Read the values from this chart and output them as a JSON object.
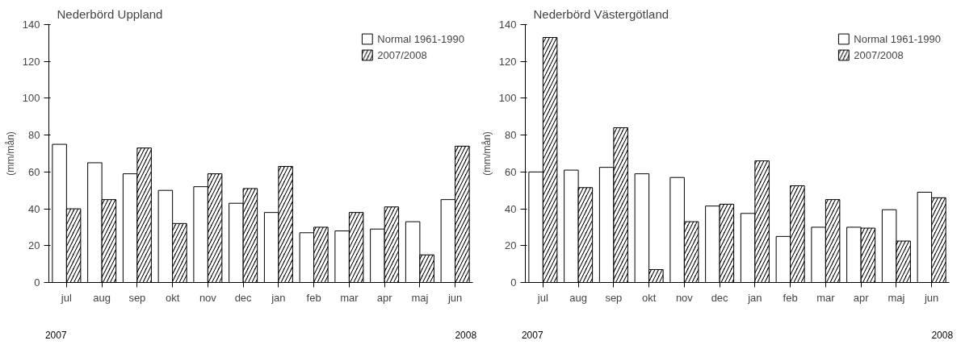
{
  "chart_data": [
    {
      "type": "bar",
      "title": "Nederbörd Uppland",
      "ylabel": "(mm/mån)",
      "categories": [
        "jul",
        "aug",
        "sep",
        "okt",
        "nov",
        "dec",
        "jan",
        "feb",
        "mar",
        "apr",
        "maj",
        "jun"
      ],
      "series": [
        {
          "name": "Normal 1961-1990",
          "color": "#ffffff",
          "values": [
            75,
            65,
            59,
            50,
            52,
            43,
            38,
            27,
            28,
            29,
            33,
            45
          ]
        },
        {
          "name": "2007/2008",
          "color": "#000000",
          "values": [
            40,
            45,
            73,
            32,
            59,
            51,
            63,
            30,
            38,
            41,
            15,
            74
          ]
        }
      ],
      "ylim": [
        0,
        140
      ],
      "yticks": [
        0,
        20,
        40,
        60,
        80,
        100,
        120,
        140
      ],
      "grid": false,
      "legend": "top right",
      "annotations": [
        "2007",
        "2008"
      ]
    },
    {
      "type": "bar",
      "title": "Nederbörd Västergötland",
      "ylabel": "(mm/mån)",
      "categories": [
        "jul",
        "aug",
        "sep",
        "okt",
        "nov",
        "dec",
        "jan",
        "feb",
        "mar",
        "apr",
        "maj",
        "jun"
      ],
      "series": [
        {
          "name": "Normal 1961-1990",
          "color": "#ffffff",
          "values": [
            60,
            61,
            62.5,
            59,
            57,
            41.5,
            37.5,
            25,
            30,
            30,
            39.5,
            49
          ]
        },
        {
          "name": "2007/2008",
          "color": "#000000",
          "values": [
            133,
            51.5,
            84,
            7,
            33,
            42.5,
            66,
            52.5,
            45,
            29.5,
            22.5,
            46
          ]
        }
      ],
      "ylim": [
        0,
        140
      ],
      "yticks": [
        0,
        20,
        40,
        60,
        80,
        100,
        120,
        140
      ],
      "grid": false,
      "legend": "top right",
      "annotations": [
        "2007",
        "2008"
      ]
    }
  ]
}
